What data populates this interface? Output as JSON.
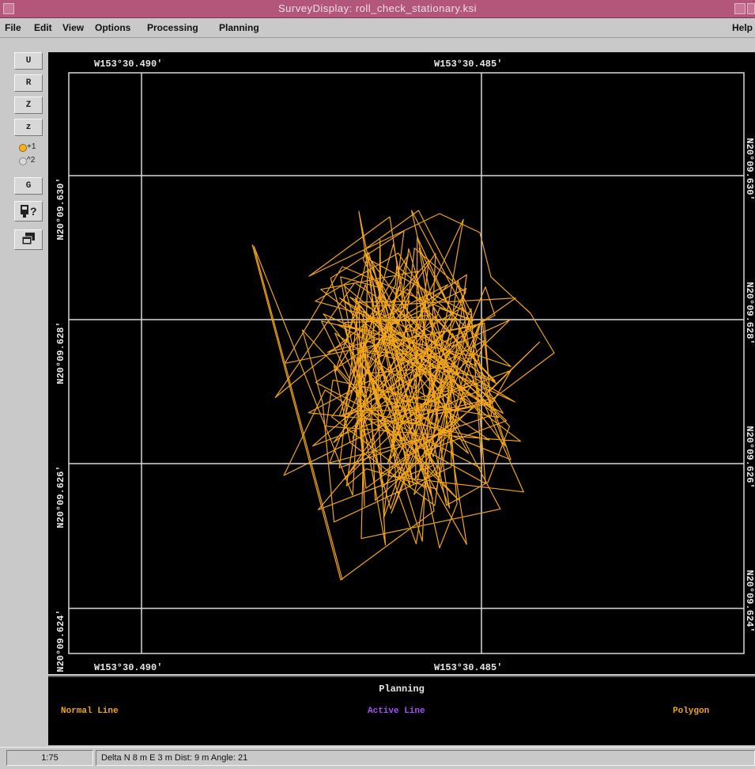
{
  "window": {
    "title": "SurveyDisplay: roll_check_stationary.ksi"
  },
  "menu": {
    "items": [
      "File",
      "Edit",
      "View",
      "Options",
      "Processing",
      "Planning"
    ],
    "help": "Help"
  },
  "toolbox": {
    "buttons": [
      "U",
      "R",
      "Z",
      "z"
    ],
    "radio1": "+1",
    "radio2": "^2",
    "grid_button": "G",
    "query_icon_text": "?"
  },
  "plot": {
    "lon_label_left": "W153°30.490'",
    "lon_label_right": "W153°30.485'",
    "lat_labels": [
      "N20°09.630'",
      "N20°09.628'",
      "N20°09.626'",
      "N20°09.624'"
    ],
    "track_color": "#f2a51a",
    "grid_color": "#d8d8d8"
  },
  "planning": {
    "title": "Planning",
    "normal_line": "Normal Line",
    "active_line": "Active Line",
    "polygon": "Polygon",
    "normal_color": "#f2a51a",
    "active_color": "#a64dff",
    "polygon_color": "#f2a51a"
  },
  "status": {
    "scale": "1:75",
    "delta": "Delta N 8 m E 3 m Dist: 9 m Angle: 21"
  }
}
